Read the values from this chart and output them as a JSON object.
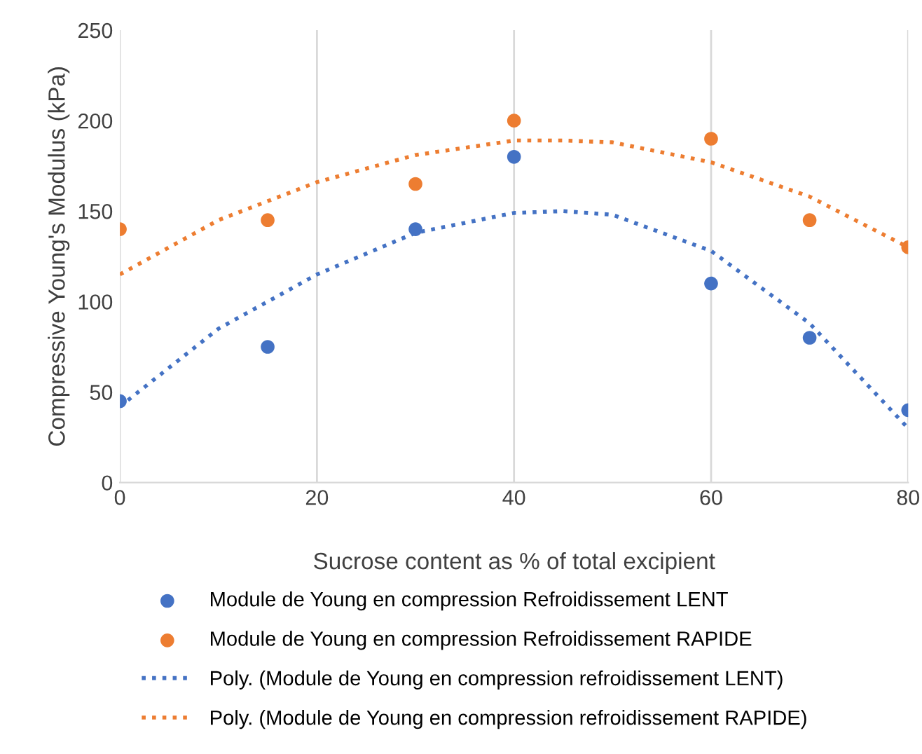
{
  "chart_data": {
    "type": "scatter",
    "xlabel": "Sucrose content as % of total excipient",
    "ylabel": "Compressive Young's Modulus (kPa)",
    "x": [
      0,
      15,
      30,
      40,
      60,
      70,
      80
    ],
    "series": [
      {
        "name": "Module de Young en compression Refroidissement LENT",
        "marker": "circle",
        "color": "#4472c4",
        "values": [
          45,
          75,
          140,
          180,
          110,
          80,
          40
        ]
      },
      {
        "name": "Module de Young en compression Refroidissement RAPIDE",
        "marker": "circle",
        "color": "#ed7d31",
        "values": [
          140,
          145,
          165,
          200,
          190,
          145,
          130
        ]
      },
      {
        "name": "Poly. (Module de Young en compression refroidissement LENT)",
        "type": "line",
        "marker": "none",
        "line_style": "dotted",
        "color": "#4472c4",
        "x": [
          0,
          10,
          20,
          30,
          40,
          45,
          50,
          60,
          70,
          80
        ],
        "values": [
          42,
          85,
          115,
          138,
          149,
          150,
          148,
          128,
          88,
          30
        ]
      },
      {
        "name": "Poly. (Module de Young en compression refroidissement RAPIDE)",
        "type": "line",
        "marker": "none",
        "line_style": "dotted",
        "color": "#ed7d31",
        "x": [
          0,
          10,
          20,
          30,
          40,
          45,
          50,
          60,
          70,
          80
        ],
        "values": [
          115,
          145,
          166,
          181,
          189,
          189,
          188,
          177,
          158,
          130
        ]
      }
    ],
    "xlim": [
      0,
      80
    ],
    "xticks": [
      0,
      20,
      40,
      60,
      80
    ],
    "ylim": [
      0,
      250
    ],
    "yticks": [
      0,
      50,
      100,
      150,
      200,
      250
    ],
    "grid": "x",
    "legend": "bottom"
  }
}
